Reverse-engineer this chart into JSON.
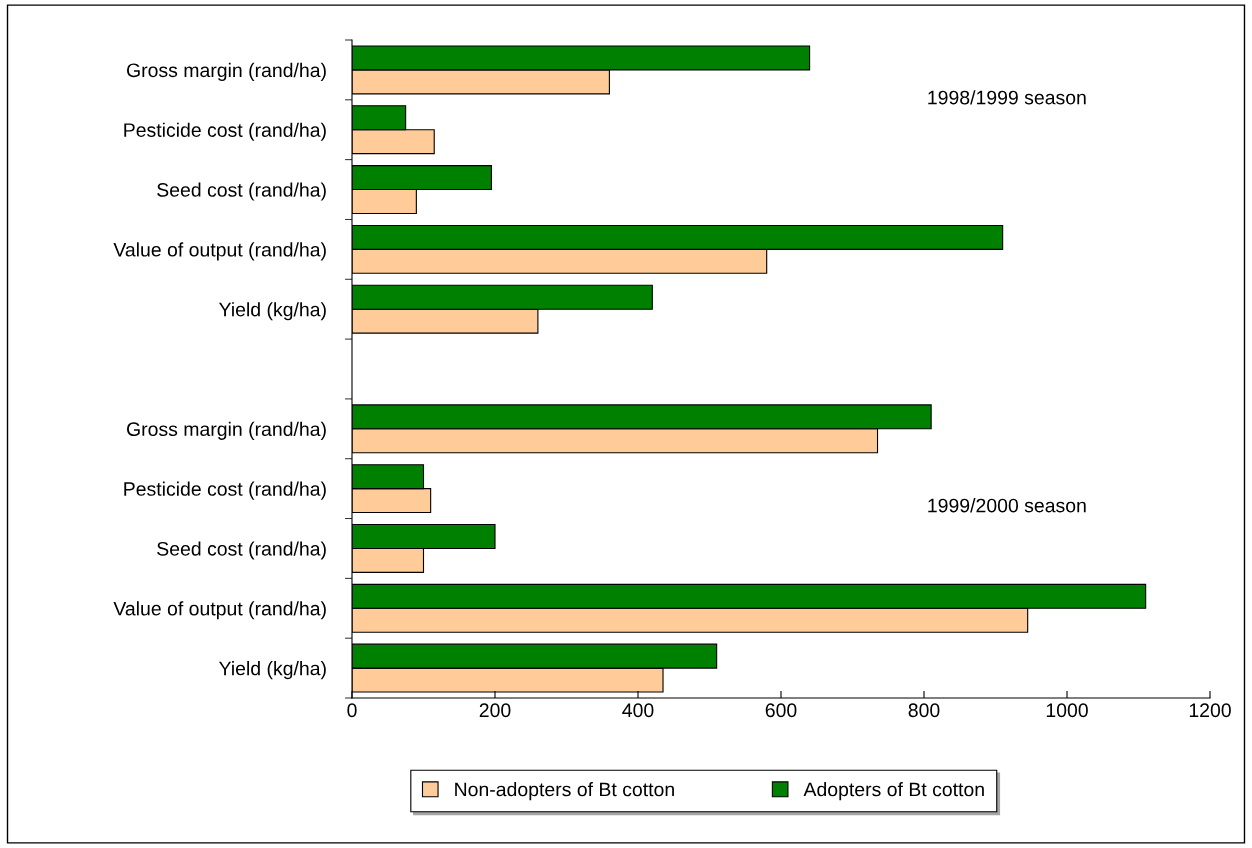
{
  "chart_data": {
    "type": "bar",
    "orientation": "horizontal",
    "categories": [
      "Gross margin (rand/ha)",
      "Pesticide cost (rand/ha)",
      "Seed cost (rand/ha)",
      "Value of output (rand/ha)",
      "Yield (kg/ha)",
      null,
      "Gross margin (rand/ha)",
      "Pesticide cost (rand/ha)",
      "Seed cost (rand/ha)",
      "Value of output (rand/ha)",
      "Yield (kg/ha)"
    ],
    "series": [
      {
        "name": "Non-adopters of Bt cotton",
        "color": "#ffcc99",
        "values": [
          360,
          115,
          90,
          580,
          260,
          null,
          735,
          110,
          100,
          945,
          435
        ]
      },
      {
        "name": "Adopters of Bt cotton",
        "color": "#008000",
        "values": [
          640,
          75,
          195,
          910,
          420,
          null,
          810,
          100,
          200,
          1110,
          510
        ]
      }
    ],
    "xlim": [
      0,
      1200
    ],
    "xticks": [
      0,
      200,
      400,
      600,
      800,
      1000,
      1200
    ],
    "annotations": [
      "1998/1999 season",
      "1999/2000 season"
    ],
    "grid": false,
    "legend": "bottom"
  }
}
